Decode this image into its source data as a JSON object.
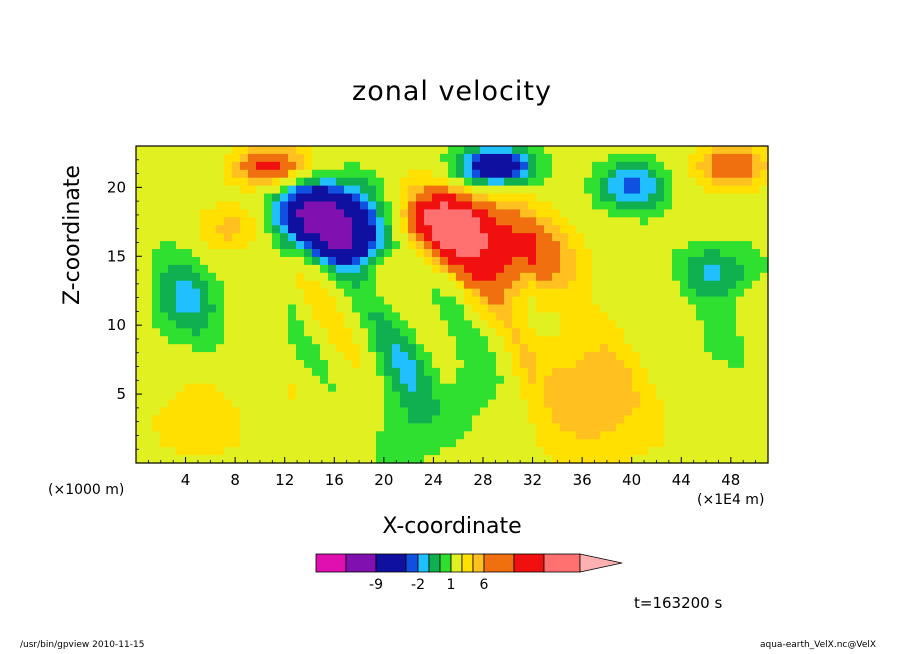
{
  "chart_data": {
    "type": "heatmap",
    "title": "zonal velocity",
    "xlabel": "X-coordinate",
    "ylabel": "Z-coordinate",
    "x_unit_left": "(×1000 m)",
    "x_unit_right": "(×1E4 m)",
    "xlim": [
      0,
      51
    ],
    "ylim": [
      0,
      23
    ],
    "x_ticks": [
      4,
      8,
      12,
      16,
      20,
      24,
      28,
      32,
      36,
      40,
      44,
      48
    ],
    "y_ticks": [
      5,
      10,
      15,
      20
    ],
    "colorbar": {
      "colors": [
        "#e010b0",
        "#8010b0",
        "#1010a0",
        "#1050e0",
        "#20c0ff",
        "#10b050",
        "#30e030",
        "#e0f020",
        "#ffe000",
        "#ffc020",
        "#f07010",
        "#f01010",
        "#ff7070",
        "#ffb0b0"
      ],
      "tick_labels": [
        "-9",
        "-2",
        "1",
        "6"
      ],
      "extend": "max"
    },
    "annotation": "t=163200 s"
  },
  "footer": {
    "left": "/usr/bin/gpview   2010-11-15",
    "right": "aqua-earth_VelX.nc@VelX"
  }
}
